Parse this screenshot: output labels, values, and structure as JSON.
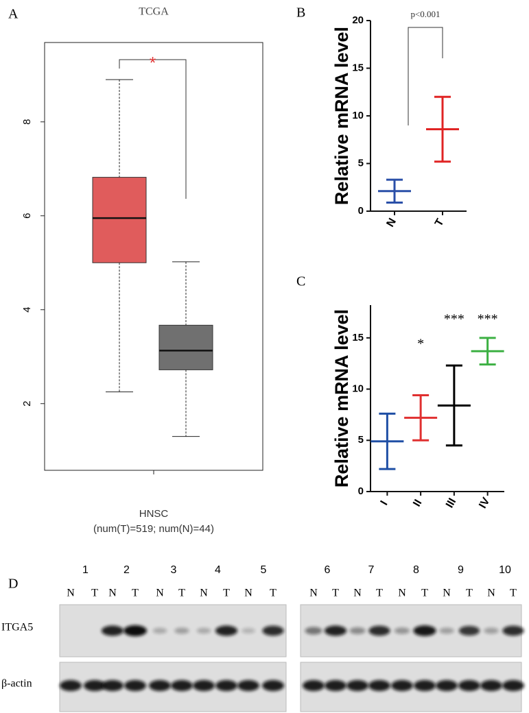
{
  "chart_data": [
    {
      "type": "box",
      "panel_label": "A",
      "title": "TCGA",
      "categories": [
        "HNSC"
      ],
      "xlabel": "(num(T)=519; num(N)=44)",
      "boxes": [
        {
          "color": "#e05c5c",
          "whisker_low": 2.25,
          "q1": 5.0,
          "median": 5.95,
          "q3": 6.82,
          "whisker_high": 8.9
        },
        {
          "color": "#707070",
          "whisker_low": 1.3,
          "q1": 2.72,
          "median": 3.13,
          "q3": 3.67,
          "whisker_high": 5.02
        }
      ],
      "annotation": "*",
      "annotation_color": "#e03030",
      "ylim": [
        0.58,
        9.69
      ],
      "yticks": [
        2,
        4,
        6,
        8
      ]
    },
    {
      "type": "dot",
      "panel_label": "B",
      "ylabel": "Relative mRNA level",
      "categories": [
        "N",
        "T"
      ],
      "values": [
        2.1,
        8.6
      ],
      "errors": [
        1.2,
        3.4
      ],
      "colors": [
        "#2a4fa8",
        "#e02424"
      ],
      "annotation": "p<0.001",
      "ylim": [
        0,
        20
      ],
      "yticks": [
        0,
        5,
        10,
        15,
        20
      ]
    },
    {
      "type": "dot",
      "panel_label": "C",
      "ylabel": "Relative mRNA level",
      "categories": [
        "I",
        "II",
        "III",
        "IV"
      ],
      "values": [
        4.9,
        7.2,
        8.4,
        13.7
      ],
      "errors": [
        2.7,
        2.2,
        3.9,
        1.3
      ],
      "colors": [
        "#1f4fa5",
        "#e03030",
        "#000000",
        "#3cb043"
      ],
      "annotations": [
        null,
        "*",
        "***",
        "***"
      ],
      "ylim": [
        0,
        18.2
      ],
      "yticks": [
        0,
        5,
        10,
        15
      ]
    }
  ],
  "blot": {
    "panel_label": "D",
    "lanes": [
      "1",
      "2",
      "3",
      "4",
      "5",
      "6",
      "7",
      "8",
      "9",
      "10"
    ],
    "lane_labels": [
      "N",
      "T",
      "N",
      "T",
      "N",
      "T",
      "N",
      "T",
      "N",
      "T",
      "N",
      "T",
      "N",
      "T",
      "N",
      "T",
      "N",
      "T",
      "N",
      "T"
    ],
    "rows": [
      "ITGA5",
      "β-actin"
    ]
  }
}
